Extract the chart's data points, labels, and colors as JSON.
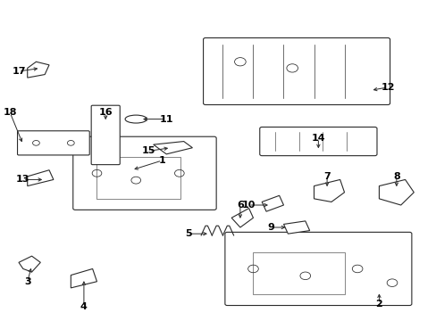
{
  "bg_color": "#ffffff",
  "line_color": "#2a2a2a",
  "label_color": "#000000",
  "figsize": [
    4.89,
    3.6
  ],
  "dpi": 100,
  "labels": {
    "1": {
      "part": [
        0.3,
        0.47
      ],
      "label": [
        0.37,
        0.5
      ]
    },
    "2": {
      "part": [
        0.87,
        0.09
      ],
      "label": [
        0.87,
        0.05
      ]
    },
    "3": {
      "part": [
        0.07,
        0.17
      ],
      "label": [
        0.06,
        0.12
      ]
    },
    "4": {
      "part": [
        0.19,
        0.13
      ],
      "label": [
        0.19,
        0.04
      ]
    },
    "5": {
      "part": [
        0.48,
        0.27
      ],
      "label": [
        0.43,
        0.27
      ]
    },
    "6": {
      "part": [
        0.55,
        0.31
      ],
      "label": [
        0.55,
        0.36
      ]
    },
    "7": {
      "part": [
        0.75,
        0.41
      ],
      "label": [
        0.75,
        0.45
      ]
    },
    "8": {
      "part": [
        0.91,
        0.41
      ],
      "label": [
        0.91,
        0.45
      ]
    },
    "9": {
      "part": [
        0.66,
        0.29
      ],
      "label": [
        0.62,
        0.29
      ]
    },
    "10": {
      "part": [
        0.62,
        0.36
      ],
      "label": [
        0.57,
        0.36
      ]
    },
    "11": {
      "part": [
        0.32,
        0.63
      ],
      "label": [
        0.38,
        0.63
      ]
    },
    "12": {
      "part": [
        0.85,
        0.72
      ],
      "label": [
        0.89,
        0.73
      ]
    },
    "13": {
      "part": [
        0.1,
        0.44
      ],
      "label": [
        0.05,
        0.44
      ]
    },
    "14": {
      "part": [
        0.73,
        0.53
      ],
      "label": [
        0.73,
        0.57
      ]
    },
    "15": {
      "part": [
        0.39,
        0.54
      ],
      "label": [
        0.34,
        0.53
      ]
    },
    "16": {
      "part": [
        0.24,
        0.62
      ],
      "label": [
        0.24,
        0.65
      ]
    },
    "17": {
      "part": [
        0.09,
        0.79
      ],
      "label": [
        0.04,
        0.78
      ]
    },
    "18": {
      "part": [
        0.05,
        0.55
      ],
      "label": [
        0.02,
        0.65
      ]
    }
  }
}
